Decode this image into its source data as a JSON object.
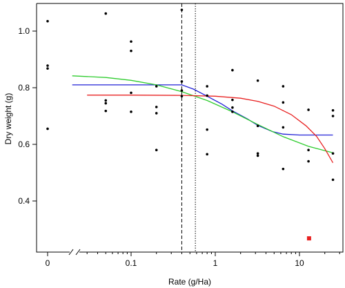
{
  "chart_data": {
    "type": "scatter",
    "title": "",
    "xlabel": "Rate (g/Ha)",
    "ylabel": "Dry weight (g)",
    "x_scale": "log",
    "x_axis_break": true,
    "xlim": [
      0.02,
      30
    ],
    "ylim": [
      0.24,
      1.1
    ],
    "grid": false,
    "legend": "none",
    "x_ticks": [
      {
        "value": 0,
        "label": "0"
      },
      {
        "value": 0.1,
        "label": "0.1"
      },
      {
        "value": 1,
        "label": "1"
      },
      {
        "value": 10,
        "label": "10"
      }
    ],
    "y_ticks": [
      {
        "value": 0.4,
        "label": "0.4"
      },
      {
        "value": 0.6,
        "label": "0.6"
      },
      {
        "value": 0.8,
        "label": "0.8"
      },
      {
        "value": 1.0,
        "label": "1.0"
      }
    ],
    "points": [
      {
        "x": 0,
        "y": 1.035
      },
      {
        "x": 0,
        "y": 0.878
      },
      {
        "x": 0,
        "y": 0.868
      },
      {
        "x": 0,
        "y": 0.655
      },
      {
        "x": 0.05,
        "y": 1.062
      },
      {
        "x": 0.05,
        "y": 0.755
      },
      {
        "x": 0.05,
        "y": 0.745
      },
      {
        "x": 0.05,
        "y": 0.718
      },
      {
        "x": 0.1,
        "y": 0.963
      },
      {
        "x": 0.1,
        "y": 0.93
      },
      {
        "x": 0.1,
        "y": 0.782
      },
      {
        "x": 0.1,
        "y": 0.715
      },
      {
        "x": 0.2,
        "y": 0.805
      },
      {
        "x": 0.2,
        "y": 0.732
      },
      {
        "x": 0.2,
        "y": 0.71
      },
      {
        "x": 0.2,
        "y": 0.58
      },
      {
        "x": 0.4,
        "y": 1.075
      },
      {
        "x": 0.4,
        "y": 0.822
      },
      {
        "x": 0.4,
        "y": 0.79
      },
      {
        "x": 0.4,
        "y": 0.77
      },
      {
        "x": 0.8,
        "y": 0.805
      },
      {
        "x": 0.8,
        "y": 0.772
      },
      {
        "x": 0.8,
        "y": 0.652
      },
      {
        "x": 0.8,
        "y": 0.565
      },
      {
        "x": 1.6,
        "y": 0.862
      },
      {
        "x": 1.6,
        "y": 0.757
      },
      {
        "x": 1.6,
        "y": 0.73
      },
      {
        "x": 1.6,
        "y": 0.715
      },
      {
        "x": 3.2,
        "y": 0.825
      },
      {
        "x": 3.2,
        "y": 0.665
      },
      {
        "x": 3.2,
        "y": 0.568
      },
      {
        "x": 3.2,
        "y": 0.56
      },
      {
        "x": 6.4,
        "y": 0.805
      },
      {
        "x": 6.4,
        "y": 0.748
      },
      {
        "x": 6.4,
        "y": 0.66
      },
      {
        "x": 6.4,
        "y": 0.513
      },
      {
        "x": 12.8,
        "y": 0.722
      },
      {
        "x": 12.8,
        "y": 0.58
      },
      {
        "x": 12.8,
        "y": 0.54
      },
      {
        "x": 25,
        "y": 0.72
      },
      {
        "x": 25,
        "y": 0.7
      },
      {
        "x": 25,
        "y": 0.568
      },
      {
        "x": 25,
        "y": 0.475
      }
    ],
    "reference_lines": [
      {
        "x": 0.4,
        "style": "dashed",
        "color": "#000000"
      },
      {
        "x": 0.58,
        "style": "dotted",
        "color": "#000000"
      }
    ],
    "series": [
      {
        "color": "#1f1fd6",
        "x": [
          0.02,
          0.2,
          0.4,
          0.55,
          0.8,
          1.2,
          1.6,
          2.4,
          3.2,
          4.8,
          6.4,
          10,
          16,
          25
        ],
        "y": [
          0.81,
          0.81,
          0.81,
          0.795,
          0.77,
          0.742,
          0.718,
          0.69,
          0.667,
          0.645,
          0.636,
          0.633,
          0.633,
          0.633
        ]
      },
      {
        "color": "#2ecc2e",
        "x": [
          0.02,
          0.05,
          0.1,
          0.2,
          0.4,
          0.8,
          1.6,
          3.2,
          6.4,
          12.8,
          25
        ],
        "y": [
          0.842,
          0.836,
          0.826,
          0.81,
          0.786,
          0.755,
          0.715,
          0.67,
          0.627,
          0.593,
          0.57
        ]
      },
      {
        "color": "#e82020",
        "x": [
          0.03,
          0.1,
          0.4,
          1,
          2,
          3.2,
          5,
          8,
          12,
          16,
          20,
          25
        ],
        "y": [
          0.774,
          0.774,
          0.773,
          0.77,
          0.763,
          0.752,
          0.735,
          0.705,
          0.665,
          0.628,
          0.585,
          0.535
        ]
      }
    ],
    "markers": [
      {
        "x": 13,
        "y": 0.268,
        "shape": "square",
        "color": "#e82020"
      }
    ]
  }
}
